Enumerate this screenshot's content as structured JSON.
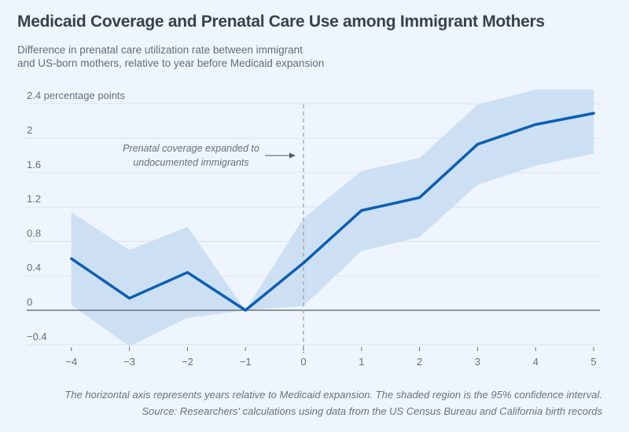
{
  "title": "Medicaid Coverage and Prenatal Care Use among Immigrant Mothers",
  "subtitle_lines": [
    "Difference in prenatal care utilization rate between immigrant",
    "and US-born mothers, relative to year before Medicaid expansion"
  ],
  "footnotes": [
    "The horizontal axis represents years relative to Medicaid expansion. The shaded region is the 95% confidence interval.",
    "Source: Researchers' calculations using data from the US Census Bureau and California birth records"
  ],
  "colors": {
    "background": "#eef5fe",
    "line": "#0b5fb5",
    "band": "#cddff3",
    "grid": "#dde6ef",
    "zero_line": "#555a60",
    "marker_line": "#a8acb0"
  },
  "chart_data": {
    "type": "line",
    "title": "Medicaid Coverage and Prenatal Care Use among Immigrant Mothers",
    "xlabel": "Years relative to Medicaid expansion",
    "ylabel": "percentage points",
    "x": [
      -4,
      -3,
      -2,
      -1,
      0,
      1,
      2,
      3,
      4,
      5
    ],
    "x_tick_labels": [
      "−4",
      "−3",
      "−2",
      "−1",
      "0",
      "1",
      "2",
      "3",
      "4",
      "5"
    ],
    "xlim": [
      -4.4,
      5.1
    ],
    "ylim": [
      -0.4,
      2.6
    ],
    "y_ticks": [
      -0.4,
      0,
      0.4,
      0.8,
      1.2,
      1.6,
      2,
      2.4
    ],
    "y_tick_labels": [
      "−0.4",
      "0",
      "0.4",
      "0.8",
      "1.2",
      "1.6",
      "2",
      "2.4 percentage points"
    ],
    "grid": true,
    "series": [
      {
        "name": "Difference in prenatal care utilization rate",
        "values": [
          0.6,
          0.14,
          0.44,
          0.0,
          0.55,
          1.16,
          1.31,
          1.93,
          2.16,
          2.29
        ]
      }
    ],
    "confidence_interval": {
      "name": "95% confidence interval",
      "lower": [
        0.06,
        -0.42,
        -0.09,
        0.0,
        0.05,
        0.69,
        0.85,
        1.46,
        1.68,
        1.82
      ],
      "upper": [
        1.14,
        0.7,
        0.97,
        0.0,
        1.07,
        1.62,
        1.77,
        2.39,
        2.57,
        2.57
      ]
    },
    "annotation": {
      "x": 0,
      "lines": [
        "Prenatal coverage expanded to",
        "undocumented immigrants"
      ]
    }
  }
}
